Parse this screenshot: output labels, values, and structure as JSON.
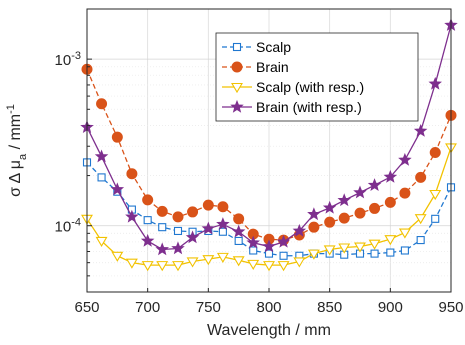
{
  "chart_data": {
    "type": "line",
    "yscale": "log",
    "xlabel": "Wavelength / mm",
    "ylabel_parts": [
      "σ Δ μ",
      "a",
      " / mm",
      "-1"
    ],
    "xlim": [
      650,
      950
    ],
    "ylim": [
      4e-05,
      0.002
    ],
    "xticks": [
      650,
      700,
      750,
      800,
      850,
      900,
      950
    ],
    "xtick_labels": [
      "650",
      "700",
      "750",
      "800",
      "850",
      "900",
      "950"
    ],
    "ytick_labels": [
      {
        "value": 0.0001,
        "base": "10",
        "exp": "-4"
      },
      {
        "value": 0.001,
        "base": "10",
        "exp": "-3"
      }
    ],
    "grid": true,
    "legend_position": "top-right",
    "x": [
      650,
      662,
      675,
      687,
      700,
      712,
      725,
      737,
      750,
      762,
      775,
      787,
      800,
      812,
      825,
      837,
      850,
      862,
      875,
      887,
      900,
      912,
      925,
      937,
      950
    ],
    "series": [
      {
        "name": "Scalp",
        "color": "#1f77d0",
        "marker": "square",
        "filled": false,
        "dash": true,
        "values": [
          0.00024,
          0.000195,
          0.00016,
          0.000125,
          0.000108,
          9.8e-05,
          9.3e-05,
          9.2e-05,
          9.3e-05,
          9.2e-05,
          8.1e-05,
          7.1e-05,
          6.8e-05,
          6.6e-05,
          6.6e-05,
          6.8e-05,
          6.8e-05,
          6.7e-05,
          6.8e-05,
          6.8e-05,
          6.9e-05,
          7.1e-05,
          8.2e-05,
          0.00011,
          0.00017
        ]
      },
      {
        "name": "Brain",
        "color": "#d95319",
        "marker": "circle",
        "filled": true,
        "dash": true,
        "values": [
          0.00087,
          0.00054,
          0.00034,
          0.000205,
          0.000143,
          0.000122,
          0.000113,
          0.000121,
          0.000133,
          0.00013,
          0.00011,
          8.9e-05,
          8.3e-05,
          8.2e-05,
          8.8e-05,
          9.8e-05,
          0.000105,
          0.000111,
          0.000119,
          0.000127,
          0.000138,
          0.000157,
          0.000195,
          0.000275,
          0.00046
        ]
      },
      {
        "name": "Scalp (with resp.)",
        "color": "#f2c200",
        "marker": "triangle-down",
        "filled": false,
        "dash": false,
        "values": [
          0.00011,
          8.1e-05,
          6.6e-05,
          6e-05,
          5.8e-05,
          5.8e-05,
          5.8e-05,
          6.1e-05,
          6.3e-05,
          6.5e-05,
          6.2e-05,
          5.9e-05,
          5.8e-05,
          5.8e-05,
          6.1e-05,
          6.8e-05,
          7.2e-05,
          7.4e-05,
          7.5e-05,
          7.8e-05,
          8.3e-05,
          9.1e-05,
          0.000111,
          0.000155,
          0.000295
        ]
      },
      {
        "name": "Brain (with resp.)",
        "color": "#7e2f8e",
        "marker": "star",
        "filled": true,
        "dash": false,
        "values": [
          0.00039,
          0.00026,
          0.000165,
          0.000113,
          8.1e-05,
          7.2e-05,
          7.3e-05,
          8.5e-05,
          9.6e-05,
          0.000102,
          9.2e-05,
          7.9e-05,
          7.5e-05,
          8e-05,
          9.3e-05,
          0.000117,
          0.000128,
          0.000142,
          0.000158,
          0.000175,
          0.000196,
          0.000248,
          0.00037,
          0.00071,
          0.0016
        ]
      }
    ]
  }
}
